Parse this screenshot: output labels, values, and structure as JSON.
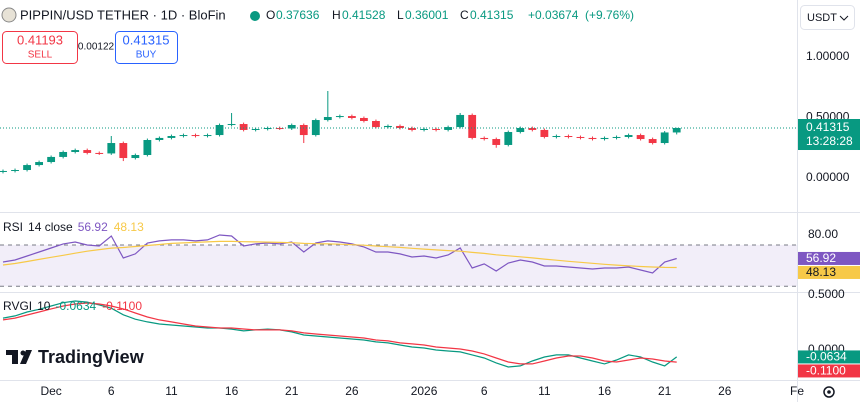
{
  "header": {
    "symbol_title": "PIPPIN/USD TETHER · 1D · BloFin",
    "ohlc_letters": [
      "O",
      "H",
      "L",
      "C"
    ],
    "change": "+0.03674",
    "change_pct": "(+9.76%)"
  },
  "trade": {
    "sell_price": "0.41193",
    "sell_label": "SELL",
    "spread": "0.00122",
    "buy_price": "0.41315",
    "buy_label": "BUY"
  },
  "currency": "USDT",
  "countdown": "13:28:28",
  "brand": "TradingView",
  "chart_data": [
    {
      "type": "candlestick",
      "up_color": "#089981",
      "down_color": "#f23645",
      "xlim": [
        -0.25,
        66
      ],
      "xticks": [
        {
          "value": 4,
          "label": "Dec"
        },
        {
          "value": 9,
          "label": "6"
        },
        {
          "value": 14,
          "label": "11"
        },
        {
          "value": 19,
          "label": "16"
        },
        {
          "value": 24,
          "label": "21"
        },
        {
          "value": 29,
          "label": "26"
        },
        {
          "value": 35,
          "label": "2026"
        },
        {
          "value": 40,
          "label": "6"
        },
        {
          "value": 45,
          "label": "11"
        },
        {
          "value": 50,
          "label": "16"
        },
        {
          "value": 55,
          "label": "21"
        },
        {
          "value": 60,
          "label": "26"
        },
        {
          "value": 66,
          "label": "Fe"
        }
      ],
      "ylim": [
        -0.281,
        1.471
      ],
      "yticks": [
        {
          "value": 1,
          "label": "1.00000"
        },
        {
          "value": 0.5,
          "label": "0.50000"
        },
        {
          "value": 0,
          "label": "0.00000"
        }
      ],
      "open": [
        0.05,
        0.058,
        0.066,
        0.107,
        0.132,
        0.174,
        0.215,
        0.231,
        0.207,
        0.203,
        0.289,
        0.165,
        0.19,
        0.314,
        0.331,
        0.347,
        0.355,
        0.347,
        0.355,
        0.438,
        0.446,
        0.397,
        0.405,
        0.413,
        0.409,
        0.438,
        0.355,
        0.479,
        0.504,
        0.512,
        0.496,
        0.471,
        0.421,
        0.43,
        0.413,
        0.397,
        0.405,
        0.397,
        0.421,
        0.521,
        0.331,
        0.322,
        0.273,
        0.38,
        0.413,
        0.397,
        0.339,
        0.347,
        0.339,
        0.331,
        0.322,
        0.331,
        0.339,
        0.355,
        0.322,
        0.289,
        0.37636
      ],
      "high": [
        0.07,
        0.078,
        0.119,
        0.144,
        0.186,
        0.227,
        0.243,
        0.243,
        0.219,
        0.347,
        0.301,
        0.202,
        0.326,
        0.343,
        0.359,
        0.367,
        0.367,
        0.367,
        0.45,
        0.537,
        0.458,
        0.417,
        0.425,
        0.425,
        0.45,
        0.45,
        0.491,
        0.719,
        0.524,
        0.524,
        0.508,
        0.483,
        0.442,
        0.442,
        0.425,
        0.417,
        0.417,
        0.433,
        0.537,
        0.533,
        0.343,
        0.334,
        0.392,
        0.425,
        0.425,
        0.409,
        0.359,
        0.359,
        0.351,
        0.343,
        0.343,
        0.351,
        0.367,
        0.367,
        0.334,
        0.388,
        0.41528
      ],
      "low": [
        0.038,
        0.046,
        0.054,
        0.095,
        0.12,
        0.162,
        0.203,
        0.195,
        0.191,
        0.191,
        0.14,
        0.153,
        0.178,
        0.302,
        0.319,
        0.335,
        0.335,
        0.335,
        0.343,
        0.426,
        0.385,
        0.385,
        0.393,
        0.397,
        0.397,
        0.289,
        0.343,
        0.467,
        0.492,
        0.484,
        0.459,
        0.409,
        0.409,
        0.401,
        0.385,
        0.385,
        0.385,
        0.385,
        0.409,
        0.319,
        0.31,
        0.25,
        0.261,
        0.368,
        0.385,
        0.327,
        0.327,
        0.327,
        0.319,
        0.31,
        0.31,
        0.319,
        0.327,
        0.31,
        0.277,
        0.277,
        0.36001
      ],
      "close": [
        0.058,
        0.066,
        0.107,
        0.132,
        0.174,
        0.215,
        0.231,
        0.207,
        0.203,
        0.289,
        0.165,
        0.19,
        0.314,
        0.331,
        0.347,
        0.355,
        0.347,
        0.355,
        0.438,
        0.446,
        0.397,
        0.405,
        0.413,
        0.409,
        0.438,
        0.355,
        0.479,
        0.504,
        0.512,
        0.496,
        0.471,
        0.421,
        0.43,
        0.413,
        0.397,
        0.405,
        0.397,
        0.421,
        0.521,
        0.331,
        0.322,
        0.273,
        0.38,
        0.413,
        0.397,
        0.339,
        0.347,
        0.339,
        0.331,
        0.322,
        0.331,
        0.339,
        0.355,
        0.322,
        0.289,
        0.3764,
        0.41315
      ]
    },
    {
      "type": "line",
      "title": "RSI",
      "params": "14 close",
      "ylim": [
        24.4,
        101
      ],
      "yticks": [
        {
          "value": 80,
          "label": "80.00"
        }
      ],
      "band": [
        30,
        70
      ],
      "band_color": "#7e57c2",
      "series": [
        {
          "color": "#7e57c2",
          "values": [
            53.5,
            55.4,
            59.3,
            63.2,
            67.1,
            71.0,
            72.9,
            70.0,
            69.0,
            78.7,
            57.4,
            61.3,
            71.9,
            73.9,
            74.9,
            74.9,
            73.9,
            74.9,
            79.7,
            78.7,
            69.0,
            71.0,
            71.9,
            71.0,
            72.9,
            63.2,
            71.9,
            73.9,
            72.9,
            71.0,
            68.1,
            63.2,
            63.2,
            61.3,
            58.3,
            59.3,
            57.4,
            60.3,
            67.1,
            47.7,
            51.6,
            44.8,
            52.5,
            55.4,
            53.5,
            49.6,
            49.6,
            48.6,
            47.7,
            46.7,
            47.7,
            47.7,
            48.6,
            45.7,
            42.8,
            53.5,
            56.92
          ]
        },
        {
          "color": "#f7c948",
          "values": [
            50.6,
            52,
            54,
            56,
            58,
            60,
            62,
            64,
            65.5,
            67,
            67.5,
            68.5,
            69.5,
            70.5,
            71.5,
            72,
            72.5,
            73,
            73.5,
            73.5,
            73.2,
            73,
            72.8,
            72.5,
            72.2,
            71.5,
            71.2,
            71,
            70.7,
            70.3,
            69.8,
            69,
            68.3,
            67.6,
            66.8,
            66,
            65.2,
            64.5,
            64,
            62.8,
            61.8,
            60.5,
            59.5,
            58.5,
            57.5,
            56.3,
            55.2,
            54.2,
            53.2,
            52.2,
            51.3,
            50.5,
            49.8,
            49.1,
            48.6,
            48.3,
            48.13
          ]
        }
      ]
    },
    {
      "type": "line",
      "title": "RVGI",
      "params": "10",
      "ylim": [
        -0.273,
        0.527
      ],
      "yticks": [
        {
          "value": 0.5,
          "label": "0.5000"
        },
        {
          "value": 0,
          "label": "0.0000"
        }
      ],
      "series": [
        {
          "color": "#089981",
          "values": [
            0.29,
            0.31,
            0.345,
            0.37,
            0.4,
            0.43,
            0.445,
            0.435,
            0.41,
            0.38,
            0.32,
            0.28,
            0.255,
            0.236,
            0.227,
            0.218,
            0.209,
            0.2,
            0.2,
            0.19,
            0.173,
            0.182,
            0.19,
            0.182,
            0.164,
            0.136,
            0.127,
            0.118,
            0.109,
            0.1,
            0.091,
            0.073,
            0.064,
            0.045,
            0.027,
            0.018,
            0,
            -0.009,
            -0.018,
            -0.045,
            -0.073,
            -0.118,
            -0.155,
            -0.145,
            -0.1,
            -0.064,
            -0.045,
            -0.045,
            -0.073,
            -0.1,
            -0.127,
            -0.091,
            -0.045,
            -0.064,
            -0.109,
            -0.145,
            -0.0634
          ]
        },
        {
          "color": "#f23645",
          "last_label": "-0.1100",
          "values": [
            0.273,
            0.29,
            0.318,
            0.345,
            0.373,
            0.4,
            0.418,
            0.427,
            0.418,
            0.4,
            0.373,
            0.336,
            0.3,
            0.273,
            0.255,
            0.236,
            0.218,
            0.209,
            0.2,
            0.2,
            0.191,
            0.182,
            0.182,
            0.182,
            0.173,
            0.155,
            0.145,
            0.136,
            0.127,
            0.118,
            0.109,
            0.091,
            0.082,
            0.064,
            0.055,
            0.045,
            0.027,
            0.018,
            0.009,
            -0.009,
            -0.036,
            -0.073,
            -0.109,
            -0.127,
            -0.127,
            -0.1,
            -0.073,
            -0.055,
            -0.055,
            -0.073,
            -0.1,
            -0.109,
            -0.091,
            -0.073,
            -0.082,
            -0.1,
            -0.11
          ]
        }
      ]
    }
  ]
}
